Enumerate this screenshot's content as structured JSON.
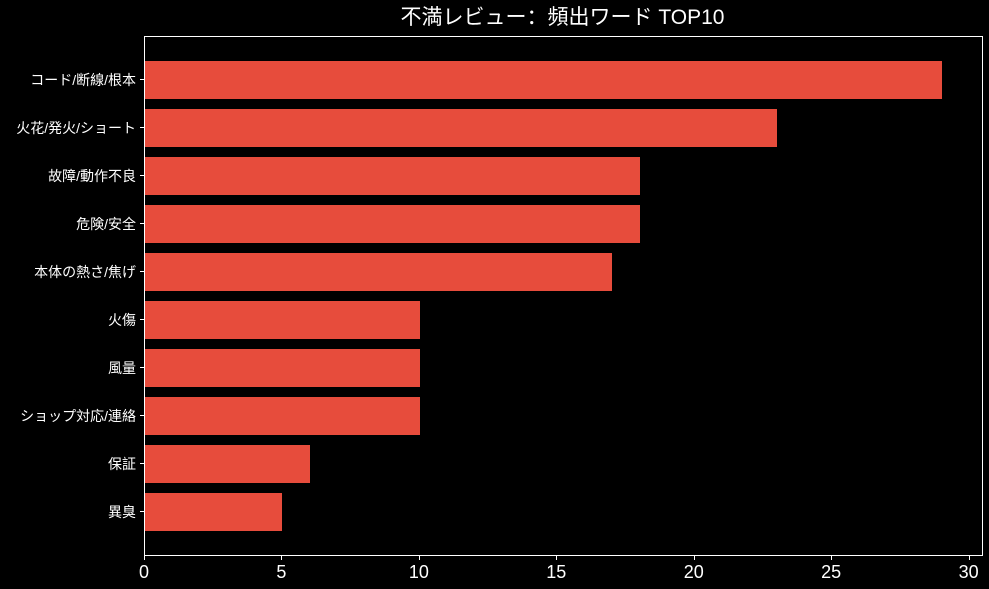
{
  "title": "不満レビュー：頻出ワード TOP10",
  "colors": {
    "background": "#000000",
    "bar": "#e74c3c",
    "text": "#ffffff",
    "spine": "#ffffff"
  },
  "chart_data": {
    "type": "bar",
    "orientation": "horizontal",
    "title": "不満レビュー：頻出ワード TOP10",
    "categories": [
      "コード/断線/根本",
      "火花/発火/ショート",
      "故障/動作不良",
      "危険/安全",
      "本体の熱さ/焦げ",
      "火傷",
      "風量",
      "ショップ対応/連絡",
      "保証",
      "異臭"
    ],
    "values": [
      29,
      23,
      18,
      18,
      17,
      10,
      10,
      10,
      6,
      5
    ],
    "xlabel": "",
    "ylabel": "",
    "xlim": [
      0,
      30.45
    ],
    "xticks": [
      0,
      5,
      10,
      15,
      20,
      25,
      30
    ],
    "grid": false,
    "legend": null,
    "bar_color": "#e74c3c"
  }
}
